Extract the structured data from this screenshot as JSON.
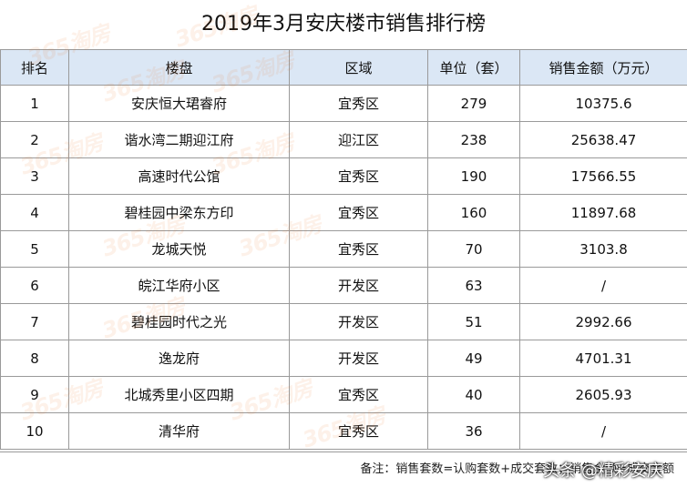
{
  "title": "2019年3月安庆楼市销售排行榜",
  "columns": [
    "排名",
    "楼盘",
    "区域",
    "单位（套）",
    "销售金额（万元）"
  ],
  "rows": [
    {
      "rank": "1",
      "name": "安庆恒大珺睿府",
      "area": "宜秀区",
      "units": "279",
      "amount": "10375.6"
    },
    {
      "rank": "2",
      "name": "谐水湾二期迎江府",
      "area": "迎江区",
      "units": "238",
      "amount": "25638.47"
    },
    {
      "rank": "3",
      "name": "高速时代公馆",
      "area": "宜秀区",
      "units": "190",
      "amount": "17566.55"
    },
    {
      "rank": "4",
      "name": "碧桂园中梁东方印",
      "area": "宜秀区",
      "units": "160",
      "amount": "11897.68"
    },
    {
      "rank": "5",
      "name": "龙城天悦",
      "area": "宜秀区",
      "units": "70",
      "amount": "3103.8"
    },
    {
      "rank": "6",
      "name": "皖江华府小区",
      "area": "开发区",
      "units": "63",
      "amount": "/"
    },
    {
      "rank": "7",
      "name": "碧桂园时代之光",
      "area": "开发区",
      "units": "51",
      "amount": "2992.66"
    },
    {
      "rank": "8",
      "name": "逸龙府",
      "area": "开发区",
      "units": "49",
      "amount": "4701.31"
    },
    {
      "rank": "9",
      "name": "北城秀里小区四期",
      "area": "宜秀区",
      "units": "40",
      "amount": "2605.93"
    },
    {
      "rank": "10",
      "name": "清华府",
      "area": "宜秀区",
      "units": "36",
      "amount": "/"
    }
  ],
  "note": "备注：销售套数=认购套数+成交套数；销售金额=成交金额",
  "watermark": "365淘房",
  "byline": "头条 @精彩安庆",
  "colors": {
    "header_bg": "#dbe7f5",
    "border": "#9a9a9a",
    "watermark": "#f07828"
  }
}
